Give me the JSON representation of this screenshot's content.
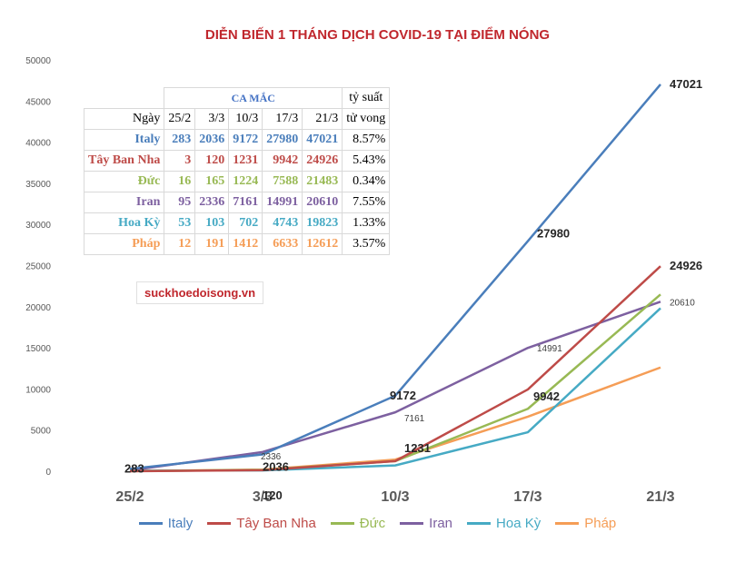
{
  "title": "DIỄN BIẾN 1 THÁNG DỊCH COVID-19 TẠI ĐIỂM NÓNG",
  "watermark": "suckhoedoisong.vn",
  "chart_data": {
    "type": "line",
    "title": "DIỄN BIẾN 1 THÁNG DỊCH COVID-19 TẠI ĐIỂM NÓNG",
    "categories": [
      "25/2",
      "3/3",
      "10/3",
      "17/3",
      "21/3"
    ],
    "ylim": [
      0,
      50000
    ],
    "yticks": [
      0,
      5000,
      10000,
      15000,
      20000,
      25000,
      30000,
      35000,
      40000,
      45000,
      50000
    ],
    "grid": false,
    "legend": "bottom",
    "series": [
      {
        "name": "Italy",
        "color": "#4a7ebb",
        "values": [
          283,
          2036,
          9172,
          27980,
          47021
        ]
      },
      {
        "name": "Tây Ban Nha",
        "color": "#be4b48",
        "values": [
          3,
          120,
          1231,
          9942,
          24926
        ]
      },
      {
        "name": "Đức",
        "color": "#98b954",
        "values": [
          16,
          165,
          1224,
          7588,
          21483
        ]
      },
      {
        "name": "Iran",
        "color": "#7d60a0",
        "values": [
          95,
          2336,
          7161,
          14991,
          20610
        ]
      },
      {
        "name": "Hoa Kỳ",
        "color": "#46aac4",
        "values": [
          53,
          103,
          702,
          4743,
          19823
        ]
      },
      {
        "name": "Pháp",
        "color": "#f59d56",
        "values": [
          12,
          191,
          1412,
          6633,
          12612
        ]
      }
    ],
    "data_labels": [
      {
        "series": 0,
        "point": 0,
        "text": "283"
      },
      {
        "series": 0,
        "point": 1,
        "text": "2036"
      },
      {
        "series": 0,
        "point": 2,
        "text": "9172"
      },
      {
        "series": 0,
        "point": 3,
        "text": "27980"
      },
      {
        "series": 0,
        "point": 4,
        "text": "47021"
      },
      {
        "series": 1,
        "point": 1,
        "text": "120"
      },
      {
        "series": 1,
        "point": 2,
        "text": "1231"
      },
      {
        "series": 1,
        "point": 3,
        "text": "9942"
      },
      {
        "series": 1,
        "point": 4,
        "text": "24926"
      },
      {
        "series": 3,
        "point": 1,
        "text": "2336"
      },
      {
        "series": 3,
        "point": 2,
        "text": "7161"
      },
      {
        "series": 3,
        "point": 3,
        "text": "14991"
      },
      {
        "series": 3,
        "point": 4,
        "text": "20610"
      }
    ]
  },
  "table": {
    "group_header": "CA MẮC",
    "rate_header_1": "tỷ suất",
    "rate_header_2": "tử vong",
    "date_header": "Ngày",
    "dates": [
      "25/2",
      "3/3",
      "10/3",
      "17/3",
      "21/3"
    ],
    "rows": [
      {
        "name": "Italy",
        "color": "#4a7ebb",
        "values": [
          "283",
          "2036",
          "9172",
          "27980",
          "47021"
        ],
        "rate": "8.57%"
      },
      {
        "name": "Tây Ban Nha",
        "color": "#be4b48",
        "values": [
          "3",
          "120",
          "1231",
          "9942",
          "24926"
        ],
        "rate": "5.43%"
      },
      {
        "name": "Đức",
        "color": "#98b954",
        "values": [
          "16",
          "165",
          "1224",
          "7588",
          "21483"
        ],
        "rate": "0.34%"
      },
      {
        "name": "Iran",
        "color": "#7d60a0",
        "values": [
          "95",
          "2336",
          "7161",
          "14991",
          "20610"
        ],
        "rate": "7.55%"
      },
      {
        "name": "Hoa Kỳ",
        "color": "#46aac4",
        "values": [
          "53",
          "103",
          "702",
          "4743",
          "19823"
        ],
        "rate": "1.33%"
      },
      {
        "name": "Pháp",
        "color": "#f59d56",
        "values": [
          "12",
          "191",
          "1412",
          "6633",
          "12612"
        ],
        "rate": "3.57%"
      }
    ]
  }
}
